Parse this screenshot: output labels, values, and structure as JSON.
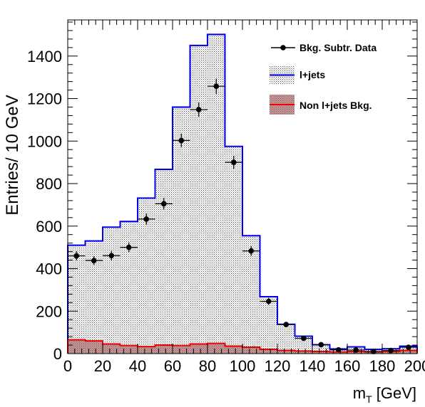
{
  "chart_data": {
    "type": "bar",
    "xlabel": "m",
    "xlabel_sub": "T",
    "xlabel_unit": " [GeV]",
    "ylabel": "Entries/ 10 GeV",
    "xlim": [
      0,
      200
    ],
    "ylim": [
      0,
      1570
    ],
    "x_ticks": [
      "0",
      "20",
      "40",
      "60",
      "80",
      "100",
      "120",
      "140",
      "160",
      "180",
      "200"
    ],
    "y_ticks": [
      "0",
      "200",
      "400",
      "600",
      "800",
      "1000",
      "1200",
      "1400"
    ],
    "bin_width": 10,
    "bin_edges": [
      0,
      10,
      20,
      30,
      40,
      50,
      60,
      70,
      80,
      90,
      100,
      110,
      120,
      130,
      140,
      150,
      160,
      170,
      180,
      190,
      200
    ],
    "legend_position": "top-right",
    "legend": {
      "data": "Bkg. Subtr. Data",
      "signal": "l+jets",
      "background": "Non l+jets Bkg."
    },
    "series": [
      {
        "name": "l+jets",
        "style": "histogram",
        "color": "#0000ee",
        "values": [
          510,
          530,
          595,
          622,
          732,
          867,
          1160,
          1450,
          1502,
          975,
          555,
          268,
          138,
          82,
          42,
          22,
          32,
          20,
          23,
          35
        ]
      },
      {
        "name": "Non l+jets Bkg.",
        "style": "histogram",
        "color": "#ee0000",
        "fill": "#b07a7a",
        "values": [
          65,
          60,
          45,
          38,
          33,
          40,
          38,
          45,
          48,
          35,
          30,
          20,
          15,
          12,
          10,
          8,
          10,
          8,
          10,
          15
        ]
      },
      {
        "name": "Bkg. Subtr. Data",
        "style": "points",
        "color": "#000000",
        "values": [
          460,
          438,
          461,
          500,
          633,
          705,
          1003,
          1148,
          1258,
          900,
          483,
          246,
          137,
          72,
          42,
          18,
          17,
          10,
          15,
          30
        ],
        "errors": [
          22,
          21,
          22,
          23,
          26,
          27,
          32,
          34,
          36,
          31,
          23,
          17,
          12,
          9,
          7,
          5,
          5,
          4,
          5,
          6
        ]
      }
    ]
  }
}
